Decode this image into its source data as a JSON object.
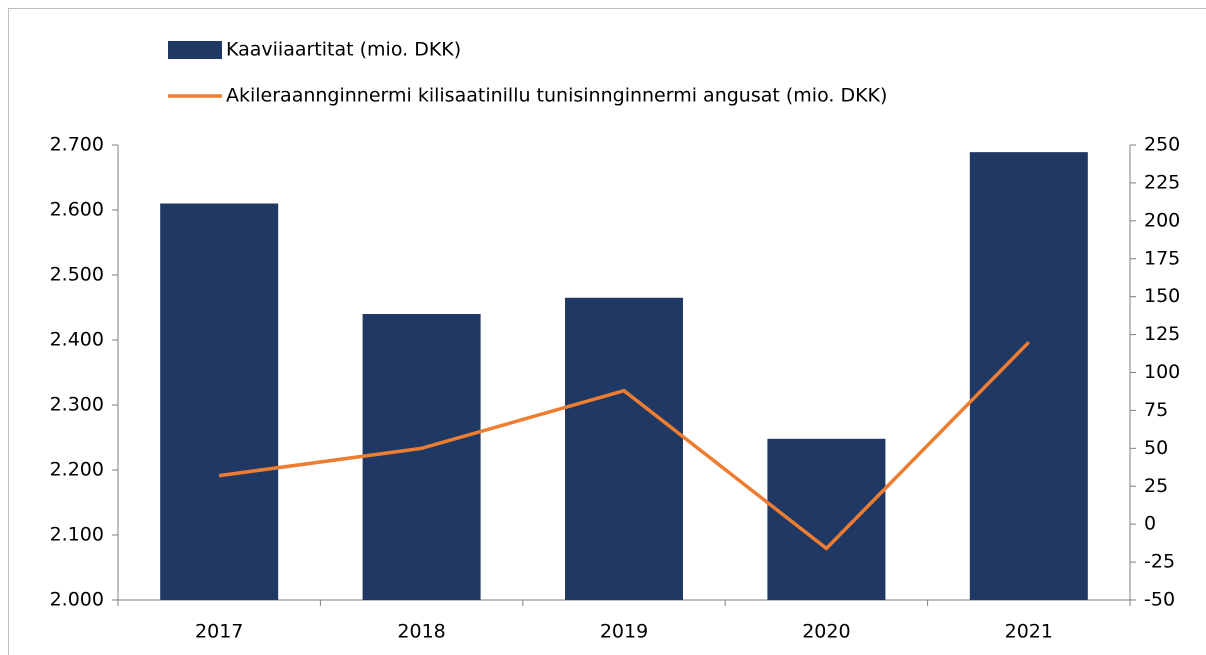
{
  "chart_data": {
    "type": "bar_line",
    "categories": [
      "2017",
      "2018",
      "2019",
      "2020",
      "2021"
    ],
    "series": [
      {
        "name": "Kaaviiaartitat (mio. DKK)",
        "type": "bar",
        "color": "#1f3864",
        "values": [
          2610,
          2440,
          2465,
          2248,
          2689
        ]
      },
      {
        "name": "Akileraannginnermi kilisaatinillu tunisinnginnermi angusat (mio. DKK)",
        "type": "line",
        "axis": "y2",
        "color": "#ed7d31",
        "values": [
          32,
          50,
          88,
          -16,
          120
        ]
      }
    ],
    "ylim": [
      2000,
      2700
    ],
    "yticks": [
      {
        "value": 2000,
        "label": "2.000"
      },
      {
        "value": 2100,
        "label": "2.100"
      },
      {
        "value": 2200,
        "label": "2.200"
      },
      {
        "value": 2300,
        "label": "2.300"
      },
      {
        "value": 2400,
        "label": "2.400"
      },
      {
        "value": 2500,
        "label": "2.500"
      },
      {
        "value": 2600,
        "label": "2.600"
      },
      {
        "value": 2700,
        "label": "2.700"
      }
    ],
    "y2lim": [
      -50,
      250
    ],
    "y2ticks": [
      -50,
      -25,
      0,
      25,
      50,
      75,
      100,
      125,
      150,
      175,
      200,
      225,
      250
    ],
    "legend": "top"
  }
}
